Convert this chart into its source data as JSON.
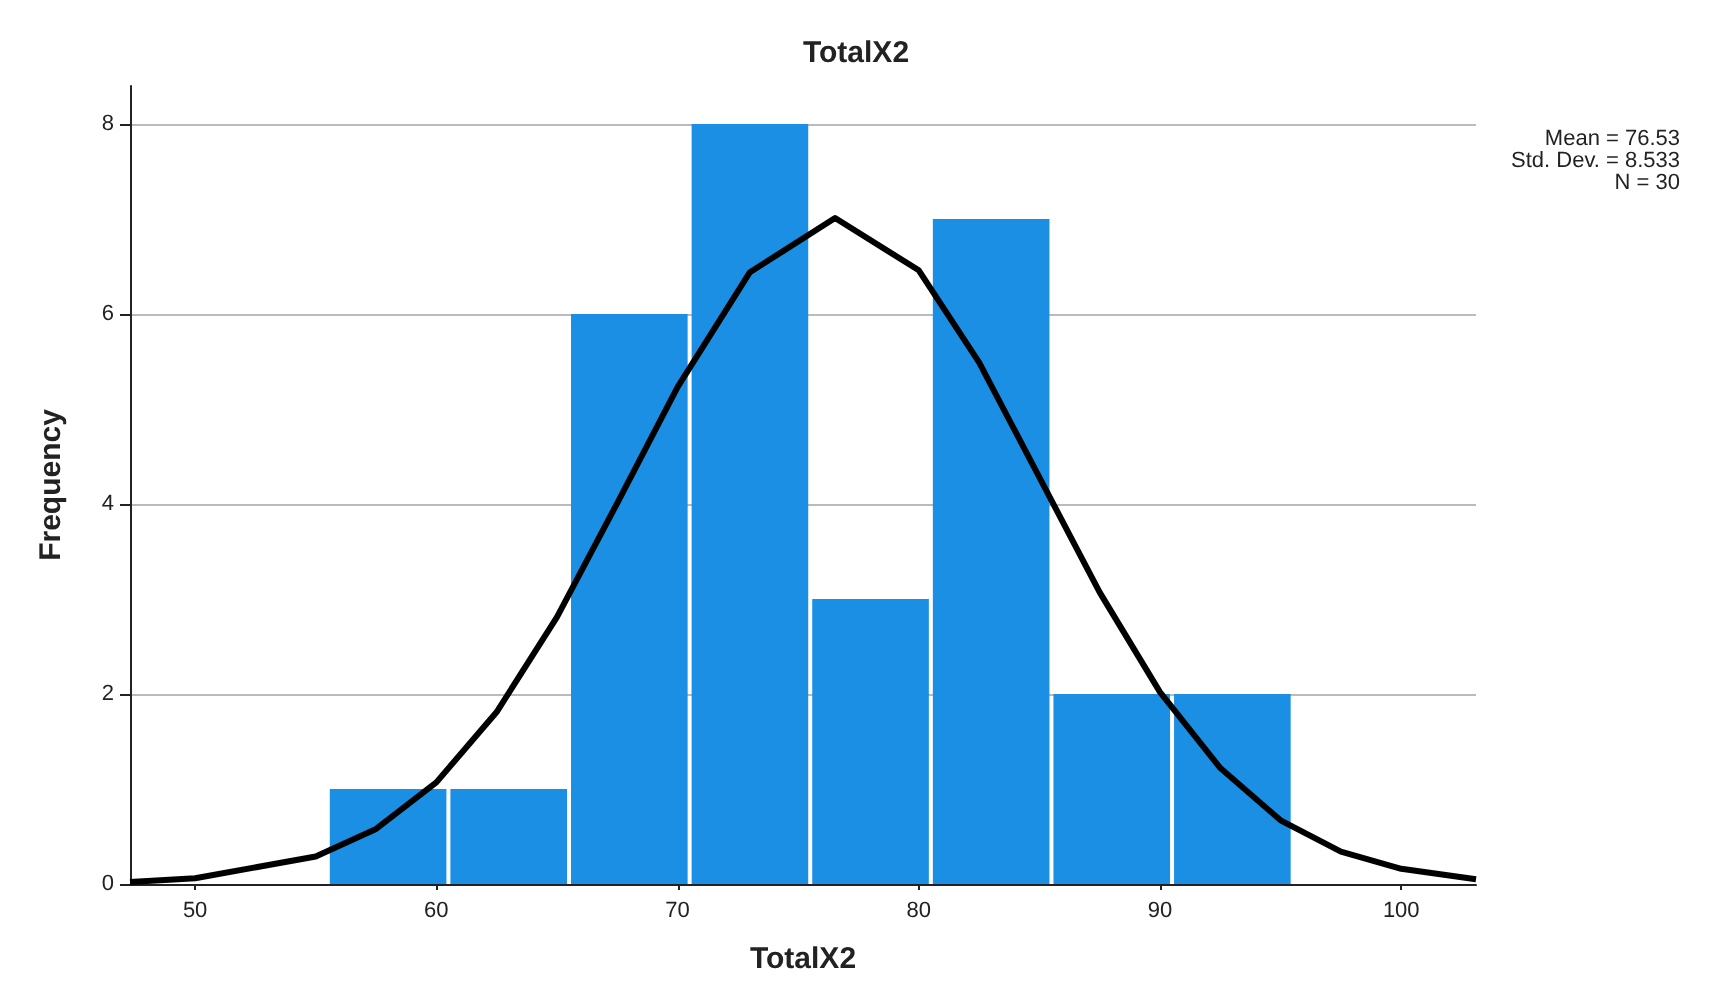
{
  "chart_data": {
    "type": "histogram",
    "title": "TotalX2",
    "xlabel": "TotalX2",
    "ylabel": "Frequency",
    "bins": [
      55.5,
      60.5,
      65.5,
      70.5,
      75.5,
      80.5,
      85.5,
      90.5,
      95.5
    ],
    "values": [
      1,
      1,
      6,
      8,
      3,
      7,
      2,
      2
    ],
    "color": "#1a8fe3",
    "series": [
      {
        "type": "line",
        "color": "#000000",
        "x": [
          47.3,
          50,
          55,
          57.5,
          60,
          62.5,
          65,
          67.5,
          70,
          73,
          76.53,
          80,
          82.5,
          85,
          87.5,
          90,
          92.5,
          95,
          97.5,
          100,
          103.1
        ],
        "values": [
          0.02,
          0.06,
          0.29,
          0.58,
          1.07,
          1.81,
          2.81,
          4.01,
          5.23,
          6.44,
          7.01,
          6.46,
          5.49,
          4.28,
          3.07,
          2.02,
          1.22,
          0.67,
          0.34,
          0.16,
          0.05
        ]
      }
    ],
    "xlim": [
      47.3,
      103.1
    ],
    "xticks": [
      50,
      60,
      70,
      80,
      90,
      100
    ],
    "ylim": [
      0,
      8.4
    ],
    "yticks": [
      0,
      2,
      4,
      6,
      8
    ],
    "grid": "y",
    "annotations": [
      "Mean = 76.53",
      "Std. Dev. = 8.533",
      "N = 30"
    ]
  }
}
